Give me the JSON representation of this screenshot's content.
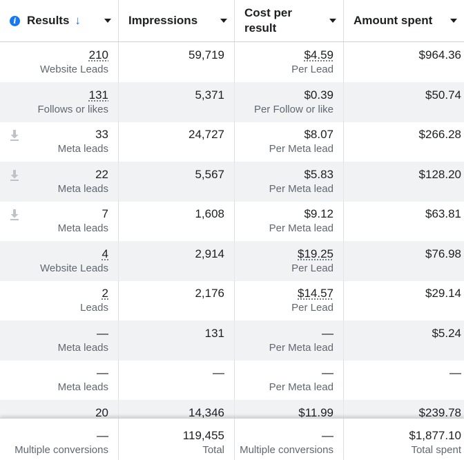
{
  "header": {
    "results_label": "Results",
    "impressions_label": "Impressions",
    "cost_label": "Cost per result",
    "amount_label": "Amount spent",
    "info_icon": "i",
    "sort_icon": "↓"
  },
  "rows": [
    {
      "results": "210",
      "results_sub": "Website Leads",
      "impressions": "59,719",
      "cost": "$4.59",
      "cost_sub": "Per Lead",
      "amount": "$964.36",
      "download": false
    },
    {
      "results": "131",
      "results_sub": "Follows or likes",
      "impressions": "5,371",
      "cost": "$0.39",
      "cost_sub": "Per Follow or like",
      "amount": "$50.74",
      "download": false
    },
    {
      "results": "33",
      "results_sub": "Meta leads",
      "impressions": "24,727",
      "cost": "$8.07",
      "cost_sub": "Per Meta lead",
      "amount": "$266.28",
      "download": true
    },
    {
      "results": "22",
      "results_sub": "Meta leads",
      "impressions": "5,567",
      "cost": "$5.83",
      "cost_sub": "Per Meta lead",
      "amount": "$128.20",
      "download": true
    },
    {
      "results": "7",
      "results_sub": "Meta leads",
      "impressions": "1,608",
      "cost": "$9.12",
      "cost_sub": "Per Meta lead",
      "amount": "$63.81",
      "download": true
    },
    {
      "results": "4",
      "results_sub": "Website Leads",
      "impressions": "2,914",
      "cost": "$19.25",
      "cost_sub": "Per Lead",
      "amount": "$76.98",
      "download": false
    },
    {
      "results": "2",
      "results_sub": "Leads",
      "impressions": "2,176",
      "cost": "$14.57",
      "cost_sub": "Per Lead",
      "amount": "$29.14",
      "download": false
    },
    {
      "results": "—",
      "results_sub": "Meta leads",
      "impressions": "131",
      "cost": "—",
      "cost_sub": "Per Meta lead",
      "amount": "$5.24",
      "download": false
    },
    {
      "results": "—",
      "results_sub": "Meta leads",
      "impressions": "—",
      "cost": "—",
      "cost_sub": "Per Meta lead",
      "amount": "—",
      "download": false
    },
    {
      "results": "20",
      "results_sub": "",
      "impressions": "14,346",
      "cost": "$11.99",
      "cost_sub": "",
      "amount": "$239.78",
      "download": false
    }
  ],
  "footer": {
    "results": "—",
    "results_sub": "Multiple conversions",
    "impressions": "119,455",
    "impressions_sub": "Total",
    "cost": "—",
    "cost_sub": "Multiple conversions",
    "amount": "$1,877.10",
    "amount_sub": "Total spent"
  },
  "colors": {
    "accent": "#1877f2",
    "alt_row": "#f1f2f4",
    "muted_text": "#606770"
  },
  "icons": {
    "download": "download-icon",
    "sort": "sort-descending-icon",
    "info": "info-icon",
    "dropdown": "caret-down-icon"
  }
}
